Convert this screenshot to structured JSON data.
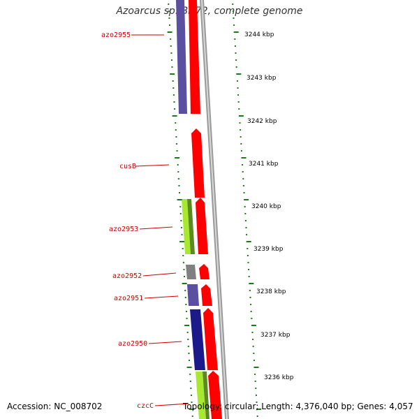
{
  "title": "Azoarcus sp. BH72, complete genome",
  "footer": {
    "accession": "Accession: NC_008702",
    "summary": "Topology: circular; Length: 4,376,040 bp; Genes: 4,057"
  },
  "colors": {
    "label_red": "#cc0000",
    "tick_green": "#1a7a1a",
    "forward_red": "#ff0000",
    "purple": "#5a4fa0",
    "navy": "#1a1a8a",
    "lime": "#a8e830",
    "olive_green": "#5a8a20",
    "gray": "#808080",
    "backbone": "#a0a0a0"
  },
  "kbp_labels": [
    "3244 kbp",
    "3243 kbp",
    "3242 kbp",
    "3241 kbp",
    "3240 kbp",
    "3239 kbp",
    "3238 kbp",
    "3237 kbp",
    "3236 kbp"
  ],
  "gene_labels": [
    "azo2955",
    "cusB",
    "azo2953",
    "azo2952",
    "azo2951",
    "azo2950",
    "czcC"
  ]
}
